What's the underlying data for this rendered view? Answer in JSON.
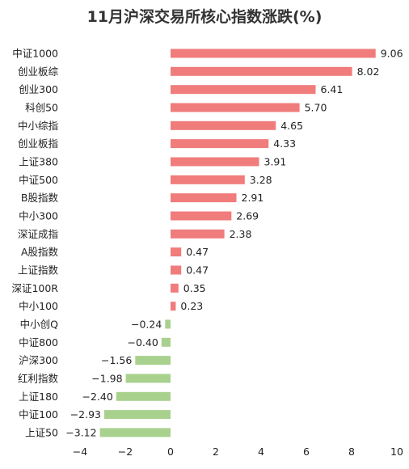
{
  "chart_data": {
    "type": "bar",
    "orientation": "horizontal",
    "title": "11月沪深交易所核心指数涨跌(%)",
    "xlim": [
      -4,
      10
    ],
    "xticks": [
      -4,
      -2,
      0,
      2,
      4,
      6,
      8,
      10
    ],
    "grid": false,
    "categories": [
      "中证1000",
      "创业板综",
      "创业300",
      "科创50",
      "中小综指",
      "创业板指",
      "上证380",
      "中证500",
      "B股指数",
      "中小300",
      "深证成指",
      "A股指数",
      "上证指数",
      "深证100R",
      "中小100",
      "中小创Q",
      "中证800",
      "沪深300",
      "红利指数",
      "上证180",
      "中证100",
      "上证50"
    ],
    "values": [
      9.06,
      8.02,
      6.41,
      5.7,
      4.65,
      4.33,
      3.91,
      3.28,
      2.91,
      2.69,
      2.38,
      0.47,
      0.47,
      0.35,
      0.23,
      -0.24,
      -0.4,
      -1.56,
      -1.98,
      -2.4,
      -2.93,
      -3.12
    ],
    "value_labels": [
      "9.06",
      "8.02",
      "6.41",
      "5.70",
      "4.65",
      "4.33",
      "3.91",
      "3.28",
      "2.91",
      "2.69",
      "2.38",
      "0.47",
      "0.47",
      "0.35",
      "0.23",
      "−0.24",
      "−0.40",
      "−1.56",
      "−1.98",
      "−2.40",
      "−2.93",
      "−3.12"
    ],
    "tick_labels": [
      "−4",
      "−2",
      "0",
      "2",
      "4",
      "6",
      "8",
      "10"
    ],
    "colors": {
      "positive": "#f07c7c",
      "negative": "#a9d18e"
    }
  }
}
